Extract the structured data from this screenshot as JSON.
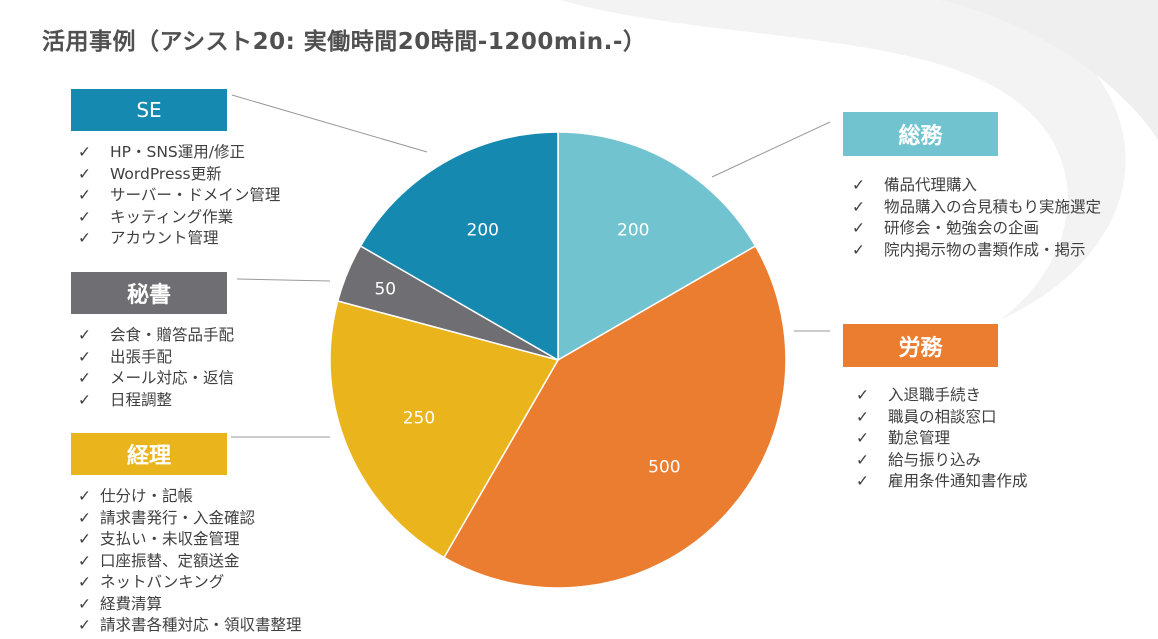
{
  "title": "活用事例（アシスト20:  実働時間20時間-1200min.-）",
  "categories": [
    {
      "name": "SE",
      "color": "#1589B0",
      "items": [
        "HP・SNS運用/修正",
        "WordPress更新",
        "サーバー・ドメイン管理",
        "キッティング作業",
        "アカウント管理"
      ]
    },
    {
      "name": "秘書",
      "color": "#6F6F73",
      "items": [
        "会食・贈答品手配",
        "出張手配",
        "メール対応・返信",
        "日程調整"
      ]
    },
    {
      "name": "経理",
      "color": "#EAB41C",
      "items": [
        "仕分け・記帳",
        "請求書発行・入金確認",
        "支払い・未収金管理",
        "口座振替、定額送金",
        "ネットバンキング",
        "経費清算",
        "請求書各種対応・領収書整理"
      ]
    },
    {
      "name": "総務",
      "color": "#72C3D0",
      "items": [
        "備品代理購入",
        "物品購入の合見積もり実施選定",
        "研修会・勉強会の企画",
        "院内掲示物の書類作成・掲示"
      ]
    },
    {
      "name": "労務",
      "color": "#EB7D31",
      "items": [
        "入退職手続き",
        "職員の相談窓口",
        "勤怠管理",
        "給与振り込み",
        "雇用条件通知書作成"
      ]
    }
  ],
  "check_mark": "✓",
  "chart_data": {
    "type": "pie",
    "title": "活用事例（アシスト20:  実働時間20時間-1200min.-）",
    "slices": [
      {
        "label": "総務",
        "value": 200,
        "color": "#72C3D0"
      },
      {
        "label": "労務",
        "value": 500,
        "color": "#EB7D31"
      },
      {
        "label": "経理",
        "value": 250,
        "color": "#EAB41C"
      },
      {
        "label": "秘書",
        "value": 50,
        "color": "#6F6F73"
      },
      {
        "label": "SE",
        "value": 200,
        "color": "#1589B0"
      }
    ],
    "total": 1200,
    "start_angle": "12 o'clock",
    "direction": "clockwise"
  }
}
